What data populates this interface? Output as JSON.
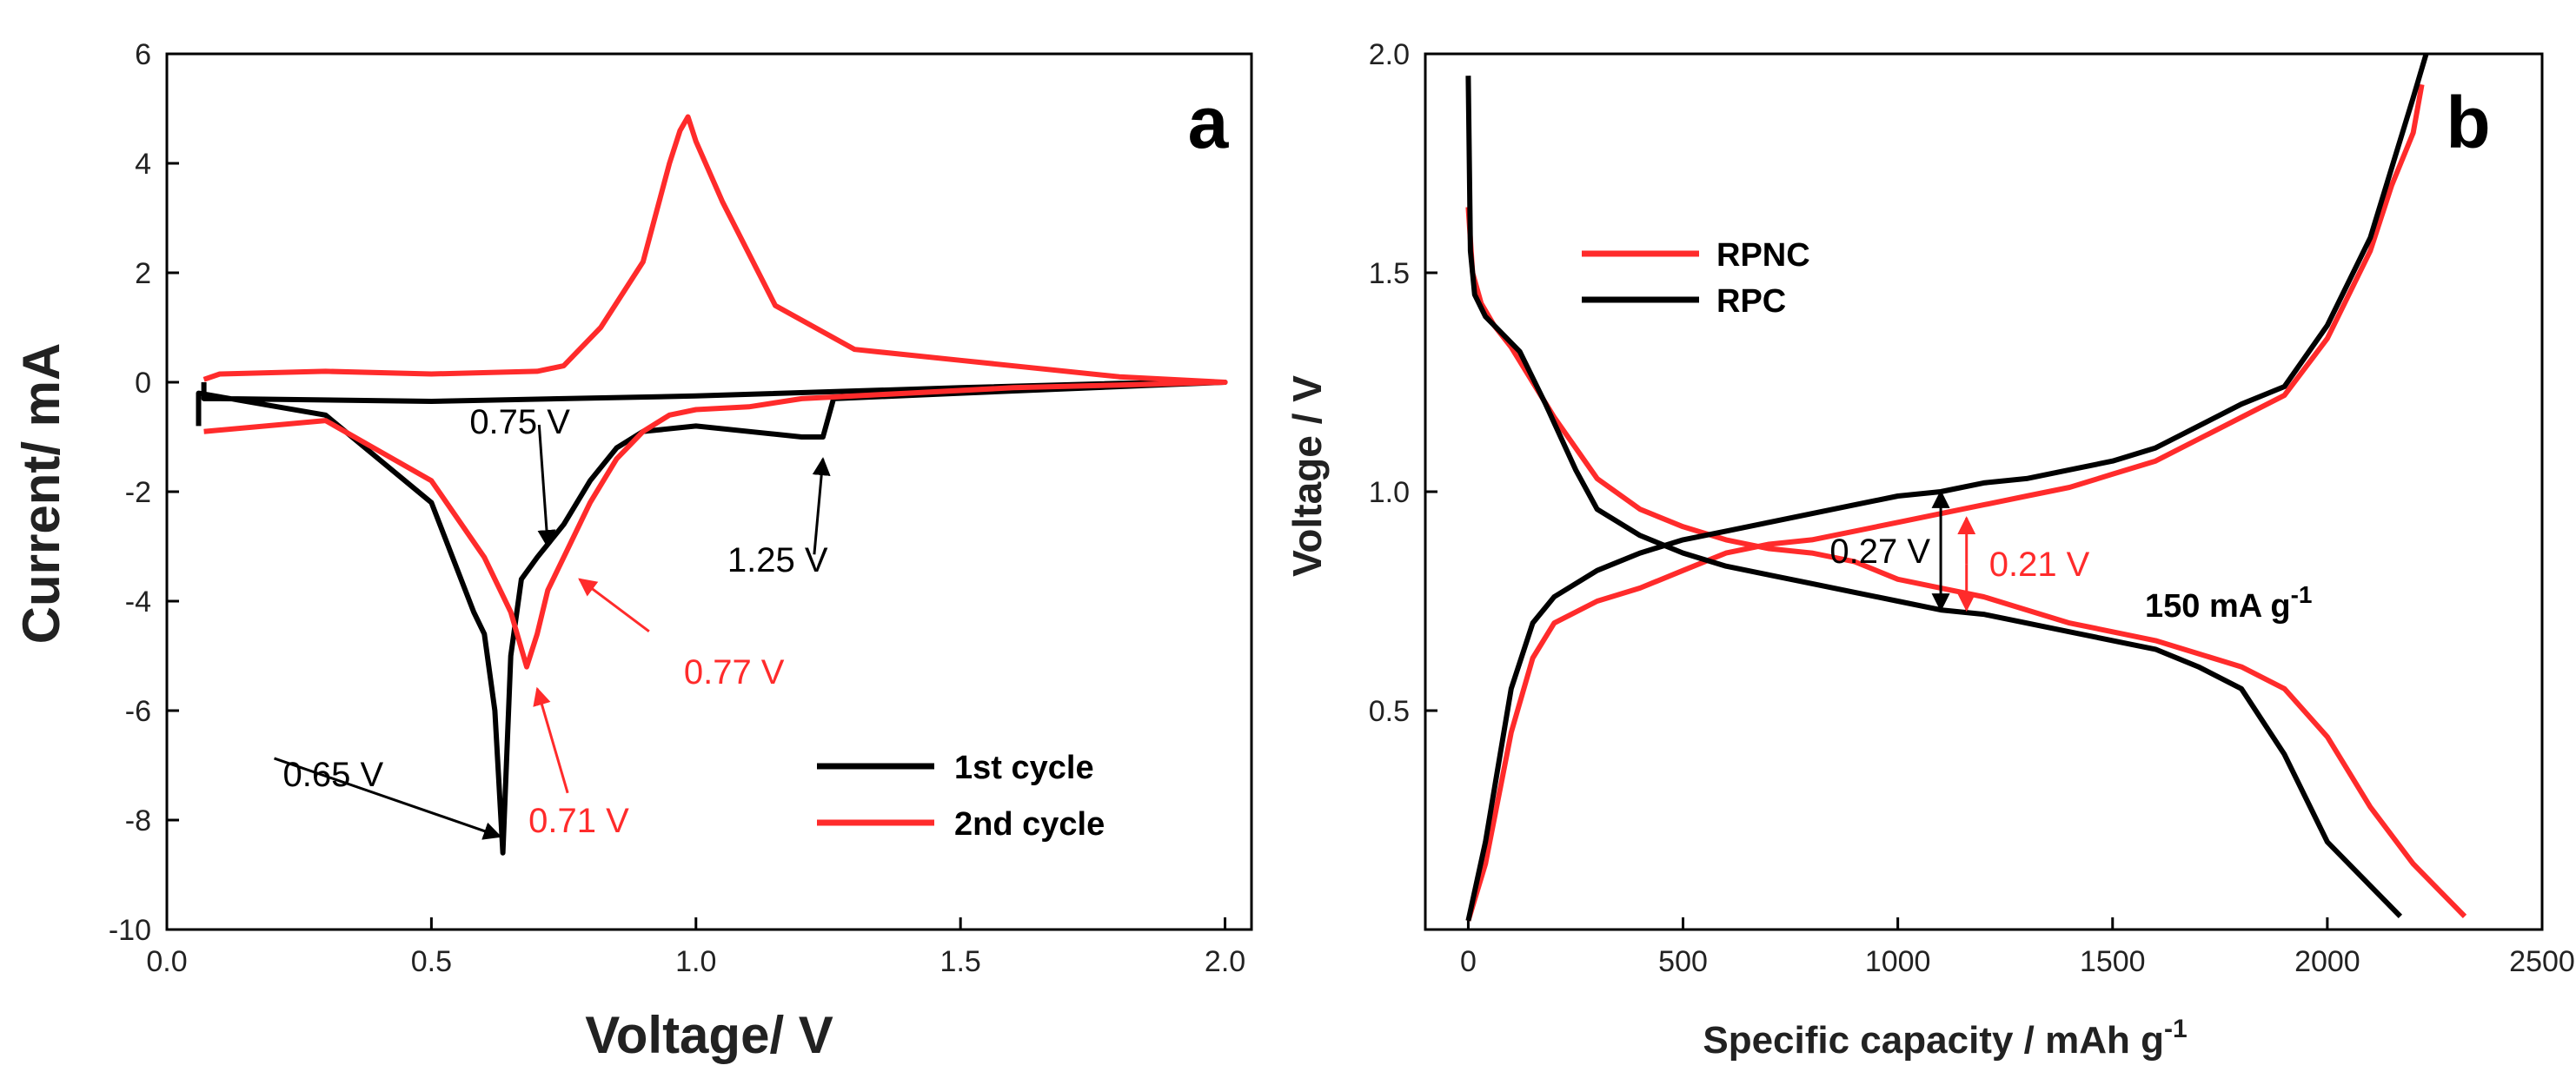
{
  "chart_data": [
    {
      "panel": "a",
      "type": "line",
      "title": "",
      "xlabel": "Voltage/ V",
      "ylabel": "Current/ mA",
      "xlim": [
        0.0,
        2.05
      ],
      "ylim": [
        -10,
        6
      ],
      "x_ticks": [
        "0.0",
        "0.5",
        "1.0",
        "1.5",
        "2.0"
      ],
      "y_ticks": [
        "6",
        "4",
        "2",
        "0",
        "-2",
        "-4",
        "-6",
        "-8",
        "-10"
      ],
      "legend_position": "bottom-right",
      "series": [
        {
          "name": "1st cycle",
          "color": "#000000",
          "x": [
            0.06,
            0.06,
            0.3,
            0.5,
            0.58,
            0.6,
            0.62,
            0.635,
            0.65,
            0.67,
            0.7,
            0.75,
            0.8,
            0.85,
            0.9,
            1.0,
            1.1,
            1.2,
            1.24,
            1.26,
            1.5,
            2.0,
            1.8,
            1.5,
            1.0,
            0.5,
            0.1,
            0.07,
            0.07
          ],
          "values": [
            -0.8,
            -0.2,
            -0.6,
            -2.2,
            -4.2,
            -4.6,
            -6.0,
            -8.6,
            -5.0,
            -3.6,
            -3.2,
            -2.6,
            -1.8,
            -1.2,
            -0.9,
            -0.8,
            -0.9,
            -1.0,
            -1.0,
            -0.3,
            -0.2,
            0.0,
            -0.02,
            -0.1,
            -0.25,
            -0.35,
            -0.3,
            -0.3,
            0.0
          ]
        },
        {
          "name": "2nd cycle",
          "color": "#ff2b2b",
          "x": [
            0.07,
            0.3,
            0.5,
            0.6,
            0.65,
            0.68,
            0.7,
            0.72,
            0.75,
            0.8,
            0.85,
            0.9,
            0.95,
            1.0,
            1.1,
            1.2,
            1.4,
            1.6,
            1.8,
            2.0,
            1.8,
            1.5,
            1.3,
            1.15,
            1.05,
            1.0,
            0.985,
            0.97,
            0.95,
            0.9,
            0.82,
            0.78,
            0.75,
            0.7,
            0.5,
            0.3,
            0.1,
            0.07
          ],
          "values": [
            -0.9,
            -0.7,
            -1.8,
            -3.2,
            -4.2,
            -5.2,
            -4.6,
            -3.8,
            -3.2,
            -2.2,
            -1.4,
            -0.9,
            -0.6,
            -0.5,
            -0.45,
            -0.3,
            -0.2,
            -0.1,
            -0.05,
            0.0,
            0.1,
            0.4,
            0.6,
            1.4,
            3.3,
            4.4,
            4.85,
            4.6,
            4.0,
            2.2,
            1.0,
            0.6,
            0.3,
            0.2,
            0.15,
            0.2,
            0.15,
            0.05
          ]
        }
      ],
      "annotations": [
        {
          "text": "0.65 V",
          "color": "#000000",
          "x": 0.63,
          "y": -8.3
        },
        {
          "text": "0.75 V",
          "color": "#000000",
          "x": 0.72,
          "y": -3.0
        },
        {
          "text": "1.25 V",
          "color": "#000000",
          "x": 1.24,
          "y": -1.4
        },
        {
          "text": "0.77 V",
          "color": "#ff2b2b",
          "x": 0.78,
          "y": -3.6
        },
        {
          "text": "0.71 V",
          "color": "#ff2b2b",
          "x": 0.7,
          "y": -5.6
        }
      ]
    },
    {
      "panel": "b",
      "type": "line",
      "title": "",
      "xlabel": "Specific capacity / mAh g",
      "xlabel_sup": "-1",
      "ylabel": "Voltage / V",
      "xlim": [
        -100,
        2500
      ],
      "ylim": [
        0.0,
        2.0
      ],
      "x_ticks": [
        "0",
        "500",
        "1000",
        "1500",
        "2000",
        "2500"
      ],
      "y_ticks": [
        "2.0",
        "1.5",
        "1.0",
        "0.5"
      ],
      "legend_position": "upper-left",
      "condition": "150 mA g",
      "condition_sup": "-1",
      "series": [
        {
          "name": "RPNC",
          "color": "#ff2b2b",
          "discharge_x": [
            0,
            10,
            30,
            60,
            100,
            150,
            200,
            300,
            400,
            500,
            600,
            700,
            800,
            900,
            1000,
            1100,
            1200,
            1300,
            1400,
            1500,
            1600,
            1700,
            1800,
            1900,
            2000,
            2100,
            2200,
            2320
          ],
          "discharge_y": [
            1.65,
            1.5,
            1.43,
            1.38,
            1.33,
            1.25,
            1.17,
            1.03,
            0.96,
            0.92,
            0.89,
            0.87,
            0.86,
            0.84,
            0.8,
            0.78,
            0.76,
            0.73,
            0.7,
            0.68,
            0.66,
            0.63,
            0.6,
            0.55,
            0.44,
            0.28,
            0.15,
            0.03
          ],
          "charge_x": [
            0,
            40,
            100,
            150,
            200,
            300,
            400,
            500,
            600,
            700,
            800,
            900,
            1000,
            1100,
            1200,
            1300,
            1400,
            1500,
            1600,
            1700,
            1800,
            1900,
            2000,
            2100,
            2150,
            2200,
            2220
          ],
          "charge_y": [
            0.02,
            0.15,
            0.45,
            0.62,
            0.7,
            0.75,
            0.78,
            0.82,
            0.86,
            0.88,
            0.89,
            0.91,
            0.93,
            0.95,
            0.97,
            0.99,
            1.01,
            1.04,
            1.07,
            1.12,
            1.17,
            1.22,
            1.35,
            1.55,
            1.7,
            1.82,
            1.93
          ]
        },
        {
          "name": "RPC",
          "color": "#000000",
          "discharge_x": [
            0,
            5,
            15,
            40,
            80,
            120,
            180,
            250,
            300,
            400,
            500,
            600,
            700,
            800,
            900,
            1000,
            1100,
            1200,
            1300,
            1400,
            1500,
            1600,
            1700,
            1800,
            1900,
            2000,
            2100,
            2170
          ],
          "discharge_y": [
            1.95,
            1.55,
            1.45,
            1.4,
            1.36,
            1.32,
            1.2,
            1.05,
            0.96,
            0.9,
            0.86,
            0.83,
            0.81,
            0.79,
            0.77,
            0.75,
            0.73,
            0.72,
            0.7,
            0.68,
            0.66,
            0.64,
            0.6,
            0.55,
            0.4,
            0.2,
            0.1,
            0.03
          ],
          "charge_x": [
            0,
            40,
            100,
            150,
            200,
            300,
            400,
            500,
            600,
            700,
            800,
            900,
            1000,
            1100,
            1200,
            1300,
            1400,
            1500,
            1600,
            1700,
            1800,
            1900,
            2000,
            2100,
            2150,
            2200,
            2230
          ],
          "charge_y": [
            0.02,
            0.2,
            0.55,
            0.7,
            0.76,
            0.82,
            0.86,
            0.89,
            0.91,
            0.93,
            0.95,
            0.97,
            0.99,
            1.0,
            1.02,
            1.03,
            1.05,
            1.07,
            1.1,
            1.15,
            1.2,
            1.24,
            1.38,
            1.58,
            1.74,
            1.9,
            2.0
          ]
        }
      ],
      "annotations": [
        {
          "text": "0.27 V",
          "color": "#000000",
          "x": 1100,
          "y_low": 0.73,
          "y_high": 1.0
        },
        {
          "text": "0.21 V",
          "color": "#ff2b2b",
          "x": 1160,
          "y_low": 0.73,
          "y_high": 0.94
        }
      ]
    }
  ],
  "panel_labels": {
    "a": "a",
    "b": "b"
  }
}
